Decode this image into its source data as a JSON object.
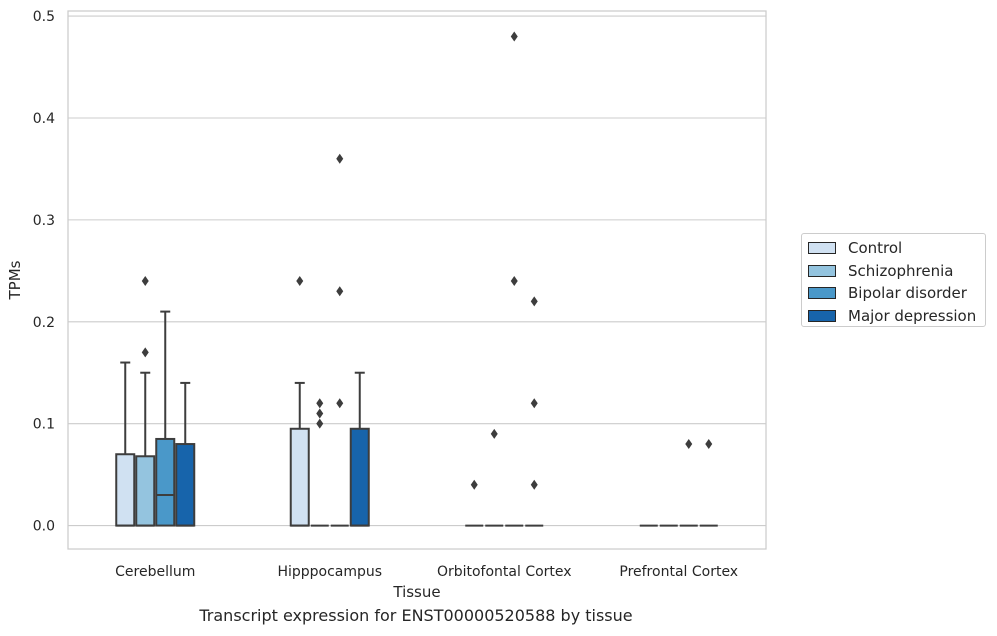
{
  "caption": "Transcript expression for ENST00000520588 by tissue",
  "chart_data": {
    "type": "box",
    "title": "",
    "xlabel": "Tissue",
    "ylabel": "TPMs",
    "ylim": [
      -0.023,
      0.505
    ],
    "yticks": [
      "0.0",
      "0.1",
      "0.2",
      "0.3",
      "0.4",
      "0.5"
    ],
    "ytick_values": [
      0,
      0.1,
      0.2,
      0.3,
      0.4,
      0.5
    ],
    "grid": "horizontal",
    "legend_position": "right",
    "categories": [
      "Cerebellum",
      "Hipppocampus",
      "Orbitofontal Cortex",
      "Prefrontal Cortex"
    ],
    "series": [
      {
        "name": "Control",
        "color": "#d0e1f2"
      },
      {
        "name": "Schizophrenia",
        "color": "#94c4df"
      },
      {
        "name": "Bipolar disorder",
        "color": "#4a98c9"
      },
      {
        "name": "Major depression",
        "color": "#1764ab"
      }
    ],
    "boxes": [
      [
        {
          "q1": 0,
          "median": 0,
          "q3": 0.07,
          "whisker_low": 0,
          "whisker_high": 0.16,
          "outliers": []
        },
        {
          "q1": 0,
          "median": 0,
          "q3": 0.068,
          "whisker_low": 0,
          "whisker_high": 0.15,
          "outliers": [
            0.17,
            0.24
          ]
        },
        {
          "q1": 0,
          "median": 0.03,
          "q3": 0.085,
          "whisker_low": 0,
          "whisker_high": 0.21,
          "outliers": []
        },
        {
          "q1": 0,
          "median": 0,
          "q3": 0.08,
          "whisker_low": 0,
          "whisker_high": 0.14,
          "outliers": []
        }
      ],
      [
        {
          "q1": 0,
          "median": 0,
          "q3": 0.095,
          "whisker_low": 0,
          "whisker_high": 0.14,
          "outliers": [
            0.24
          ]
        },
        {
          "q1": 0,
          "median": 0,
          "q3": 0,
          "whisker_low": 0,
          "whisker_high": 0,
          "outliers": [
            0.1,
            0.11,
            0.12
          ]
        },
        {
          "q1": 0,
          "median": 0,
          "q3": 0,
          "whisker_low": 0,
          "whisker_high": 0,
          "outliers": [
            0.12,
            0.23,
            0.36
          ]
        },
        {
          "q1": 0,
          "median": 0,
          "q3": 0.095,
          "whisker_low": 0,
          "whisker_high": 0.15,
          "outliers": []
        }
      ],
      [
        {
          "q1": 0,
          "median": 0,
          "q3": 0,
          "whisker_low": 0,
          "whisker_high": 0,
          "outliers": [
            0.04
          ]
        },
        {
          "q1": 0,
          "median": 0,
          "q3": 0,
          "whisker_low": 0,
          "whisker_high": 0,
          "outliers": [
            0.09
          ]
        },
        {
          "q1": 0,
          "median": 0,
          "q3": 0,
          "whisker_low": 0,
          "whisker_high": 0,
          "outliers": [
            0.24,
            0.48
          ]
        },
        {
          "q1": 0,
          "median": 0,
          "q3": 0,
          "whisker_low": 0,
          "whisker_high": 0,
          "outliers": [
            0.04,
            0.12,
            0.22
          ]
        }
      ],
      [
        {
          "q1": 0,
          "median": 0,
          "q3": 0,
          "whisker_low": 0,
          "whisker_high": 0,
          "outliers": []
        },
        {
          "q1": 0,
          "median": 0,
          "q3": 0,
          "whisker_low": 0,
          "whisker_high": 0,
          "outliers": []
        },
        {
          "q1": 0,
          "median": 0,
          "q3": 0,
          "whisker_low": 0,
          "whisker_high": 0,
          "outliers": [
            0.08
          ]
        },
        {
          "q1": 0,
          "median": 0,
          "q3": 0,
          "whisker_low": 0,
          "whisker_high": 0,
          "outliers": [
            0.08
          ]
        }
      ]
    ]
  }
}
